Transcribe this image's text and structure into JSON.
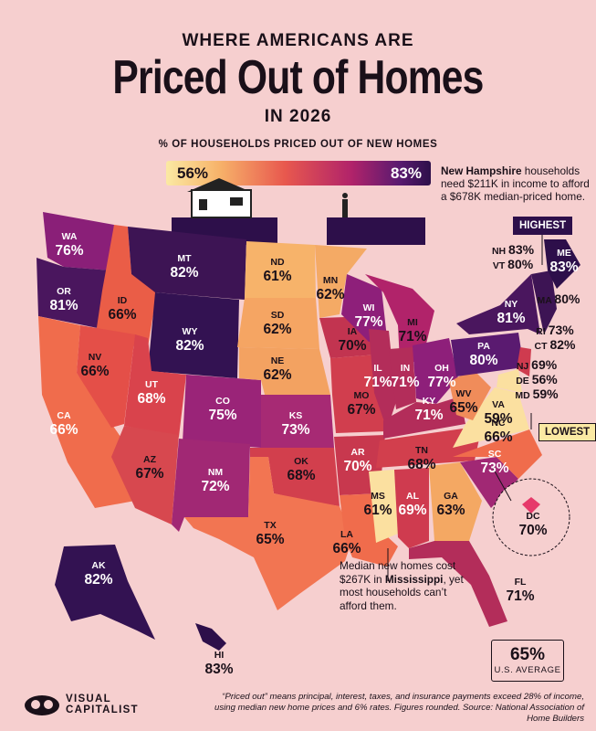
{
  "header": {
    "title_small": "WHERE AMERICANS ARE",
    "title_main": "Priced Out of Homes",
    "title_year": "IN 2026"
  },
  "legend": {
    "title": "% OF HOUSEHOLDS PRICED OUT OF NEW HOMES",
    "min": "56%",
    "max": "83%",
    "colors": [
      "#fbe9a3",
      "#f7b36a",
      "#e8584e",
      "#b1236a",
      "#5a1a70",
      "#2d0f4a"
    ]
  },
  "callouts": {
    "nh_bold": "New Hampshire",
    "nh_rest": " households need $211K in income to afford a $678K median-priced home.",
    "ms_line1": "Median new homes cost $267K in ",
    "ms_bold": "Mississippi",
    "ms_line2": ", yet most households can’t afford them."
  },
  "badges": {
    "highest": "HIGHEST",
    "lowest": "LOWEST"
  },
  "states": [
    {
      "abbr": "WA",
      "value": "76%"
    },
    {
      "abbr": "OR",
      "value": "81%"
    },
    {
      "abbr": "CA",
      "value": "66%"
    },
    {
      "abbr": "ID",
      "value": "66%"
    },
    {
      "abbr": "NV",
      "value": "66%"
    },
    {
      "abbr": "MT",
      "value": "82%"
    },
    {
      "abbr": "WY",
      "value": "82%"
    },
    {
      "abbr": "UT",
      "value": "68%"
    },
    {
      "abbr": "AZ",
      "value": "67%"
    },
    {
      "abbr": "CO",
      "value": "75%"
    },
    {
      "abbr": "NM",
      "value": "72%"
    },
    {
      "abbr": "ND",
      "value": "61%"
    },
    {
      "abbr": "SD",
      "value": "62%"
    },
    {
      "abbr": "NE",
      "value": "62%"
    },
    {
      "abbr": "KS",
      "value": "73%"
    },
    {
      "abbr": "OK",
      "value": "68%"
    },
    {
      "abbr": "TX",
      "value": "65%"
    },
    {
      "abbr": "MN",
      "value": "62%"
    },
    {
      "abbr": "IA",
      "value": "70%"
    },
    {
      "abbr": "MO",
      "value": "67%"
    },
    {
      "abbr": "AR",
      "value": "70%"
    },
    {
      "abbr": "LA",
      "value": "66%"
    },
    {
      "abbr": "WI",
      "value": "77%"
    },
    {
      "abbr": "IL",
      "value": "71%"
    },
    {
      "abbr": "MI",
      "value": "71%"
    },
    {
      "abbr": "IN",
      "value": "71%"
    },
    {
      "abbr": "OH",
      "value": "77%"
    },
    {
      "abbr": "KY",
      "value": "71%"
    },
    {
      "abbr": "TN",
      "value": "68%"
    },
    {
      "abbr": "MS",
      "value": "61%"
    },
    {
      "abbr": "AL",
      "value": "69%"
    },
    {
      "abbr": "GA",
      "value": "63%"
    },
    {
      "abbr": "FL",
      "value": "71%"
    },
    {
      "abbr": "SC",
      "value": "73%"
    },
    {
      "abbr": "NC",
      "value": "66%"
    },
    {
      "abbr": "VA",
      "value": "59%"
    },
    {
      "abbr": "WV",
      "value": "65%"
    },
    {
      "abbr": "PA",
      "value": "80%"
    },
    {
      "abbr": "NY",
      "value": "81%"
    },
    {
      "abbr": "ME",
      "value": "83%"
    },
    {
      "abbr": "AK",
      "value": "82%"
    },
    {
      "abbr": "HI",
      "value": "83%"
    },
    {
      "abbr": "DC",
      "value": "70%"
    }
  ],
  "northeast": [
    {
      "abbr": "NH",
      "value": "83%"
    },
    {
      "abbr": "VT",
      "value": "80%"
    },
    {
      "abbr": "MA",
      "value": "80%"
    },
    {
      "abbr": "RI",
      "value": "73%"
    },
    {
      "abbr": "CT",
      "value": "82%"
    },
    {
      "abbr": "NJ",
      "value": "69%"
    },
    {
      "abbr": "DE",
      "value": "56%"
    },
    {
      "abbr": "MD",
      "value": "59%"
    }
  ],
  "average": {
    "value": "65%",
    "label": "U.S. AVERAGE"
  },
  "brand": {
    "line1": "VISUAL",
    "line2": "CAPITALIST"
  },
  "footnote": {
    "line1": "“Priced out” means principal, interest, taxes, and insurance payments exceed 28% of income,",
    "line2": "using median new home prices and 6% rates. Figures rounded. Source: National Association of Home Builders"
  }
}
